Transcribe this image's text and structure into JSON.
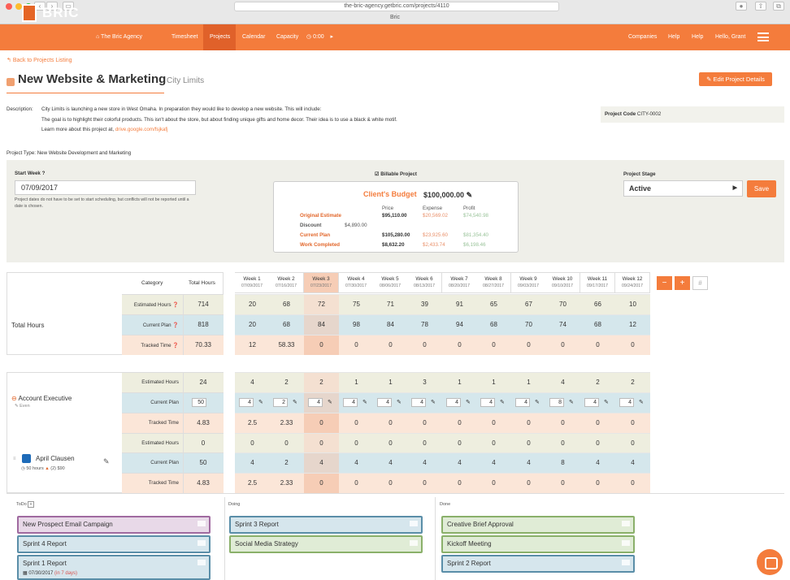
{
  "browser": {
    "url": "the-bric-agency.getbric.com/projects/4110",
    "tab_title": "Bric"
  },
  "nav": {
    "brand": "BRIC",
    "agency": "The Bric Agency",
    "timesheet": "Timesheet",
    "projects": "Projects",
    "calendar": "Calendar",
    "capacity": "Capacity",
    "timer": "0:00",
    "companies": "Companies",
    "help1": "Help",
    "help2": "Help",
    "greeting": "Hello, Grant"
  },
  "header": {
    "back": "Back to Projects Listing",
    "title": "New Website & Marketing",
    "client": "City Limits",
    "edit": "Edit Project Details"
  },
  "description": {
    "label": "Description:",
    "line1": "City Limits is launching a new store in West Omaha. In preparation they would like to develop a new website. This will include:",
    "line2": "The goal is to highlight their colorful products. This isn't about the store, but about finding unique gifts and home decor. Their idea is to use a black & white motif.",
    "line3": "Learn more about this project at,",
    "link": "drive.google.com/fsjkafj",
    "project_code_label": "Project Code",
    "project_code": "CITY-0002",
    "project_type": "Project Type: New Website Development and Marketing"
  },
  "settings": {
    "start_label": "Start Week",
    "start_value": "07/09/2017",
    "start_note": "Project dates do not have to be set to start scheduling, but conflicts will not be reported until a date is chosen.",
    "billable": "Billable Project",
    "stage_label": "Project Stage",
    "stage": "Active",
    "save": "Save"
  },
  "budget": {
    "title": "Client's Budget",
    "amount": "$100,000.00",
    "col_price": "Price",
    "col_expense": "Expense",
    "col_profit": "Profit",
    "rows": [
      {
        "label": "Original Estimate",
        "price": "$95,110.00",
        "expense": "$20,569.02",
        "profit": "$74,540.98"
      },
      {
        "label": "Discount",
        "price": "$4,890.00",
        "expense": "",
        "profit": ""
      },
      {
        "label": "Current Plan",
        "price": "$105,280.00",
        "expense": "$23,925.60",
        "profit": "$81,354.40"
      },
      {
        "label": "Work Completed",
        "price": "$8,632.20",
        "expense": "$2,433.74",
        "profit": "$6,198.46"
      }
    ]
  },
  "table": {
    "category": "Category",
    "total_hours": "Total Hours",
    "weeks": [
      {
        "w": "Week 1",
        "d": "07/09/2017"
      },
      {
        "w": "Week 2",
        "d": "07/16/2017"
      },
      {
        "w": "Week 3",
        "d": "07/23/2017"
      },
      {
        "w": "Week 4",
        "d": "07/30/2017"
      },
      {
        "w": "Week 5",
        "d": "08/06/2017"
      },
      {
        "w": "Week 6",
        "d": "08/13/2017"
      },
      {
        "w": "Week 7",
        "d": "08/20/2017"
      },
      {
        "w": "Week 8",
        "d": "08/27/2017"
      },
      {
        "w": "Week 9",
        "d": "09/03/2017"
      },
      {
        "w": "Week 10",
        "d": "09/10/2017"
      },
      {
        "w": "Week 11",
        "d": "09/17/2017"
      },
      {
        "w": "Week 12",
        "d": "09/24/2017"
      }
    ],
    "totals": {
      "label": "Total Hours",
      "rows": [
        {
          "cat": "Estimated Hours",
          "total": "714",
          "vals": [
            "20",
            "68",
            "72",
            "75",
            "71",
            "39",
            "91",
            "65",
            "67",
            "70",
            "66",
            "10"
          ]
        },
        {
          "cat": "Current Plan",
          "total": "818",
          "vals": [
            "20",
            "68",
            "84",
            "98",
            "84",
            "78",
            "94",
            "68",
            "70",
            "74",
            "68",
            "12"
          ]
        },
        {
          "cat": "Tracked Time",
          "total": "70.33",
          "vals": [
            "12",
            "58.33",
            "0",
            "0",
            "0",
            "0",
            "0",
            "0",
            "0",
            "0",
            "0",
            "0"
          ]
        }
      ]
    },
    "role": {
      "name": "Account Executive",
      "sub": "Even",
      "rows": [
        {
          "cat": "Estimated Hours",
          "total": "24",
          "vals": [
            "4",
            "2",
            "2",
            "1",
            "1",
            "3",
            "1",
            "1",
            "1",
            "4",
            "2",
            "2"
          ]
        },
        {
          "cat": "Current Plan",
          "total": "50",
          "vals": [
            "4",
            "2",
            "4",
            "4",
            "4",
            "4",
            "4",
            "4",
            "4",
            "8",
            "4",
            "4"
          ]
        },
        {
          "cat": "Tracked Time",
          "total": "4.83",
          "vals": [
            "2.5",
            "2.33",
            "0",
            "0",
            "0",
            "0",
            "0",
            "0",
            "0",
            "0",
            "0",
            "0"
          ]
        }
      ]
    },
    "person": {
      "name": "April Clausen",
      "sub": "50 hours",
      "sub2": "(2)",
      "sub3": "$90",
      "rows": [
        {
          "cat": "Estimated Hours",
          "total": "0",
          "vals": [
            "0",
            "0",
            "0",
            "0",
            "0",
            "0",
            "0",
            "0",
            "0",
            "0",
            "0",
            "0"
          ]
        },
        {
          "cat": "Current Plan",
          "total": "50",
          "vals": [
            "4",
            "2",
            "4",
            "4",
            "4",
            "4",
            "4",
            "4",
            "4",
            "8",
            "4",
            "4"
          ]
        },
        {
          "cat": "Tracked Time",
          "total": "4.83",
          "vals": [
            "2.5",
            "2.33",
            "0",
            "0",
            "0",
            "0",
            "0",
            "0",
            "0",
            "0",
            "0",
            "0"
          ]
        }
      ]
    }
  },
  "kanban": {
    "todo": "ToDo",
    "doing": "Doing",
    "done": "Done",
    "todo_cards": [
      "New Prospect Email Campaign",
      "Sprint 4 Report",
      "Sprint 1 Report"
    ],
    "todo_card3_date": "07/30/2017",
    "todo_card3_due": "(in 7 days)",
    "doing_cards": [
      "Sprint 3 Report",
      "Social Media Strategy"
    ],
    "done_cards": [
      "Creative Brief Approval",
      "Kickoff Meeting",
      "Sprint 2 Report"
    ]
  },
  "colors": {
    "accent": "#f47c3c",
    "estimated": "#eeeedf",
    "plan": "#d5e7ec",
    "tracked": "#fbe6d8",
    "current_week": "#f6cdb6"
  }
}
